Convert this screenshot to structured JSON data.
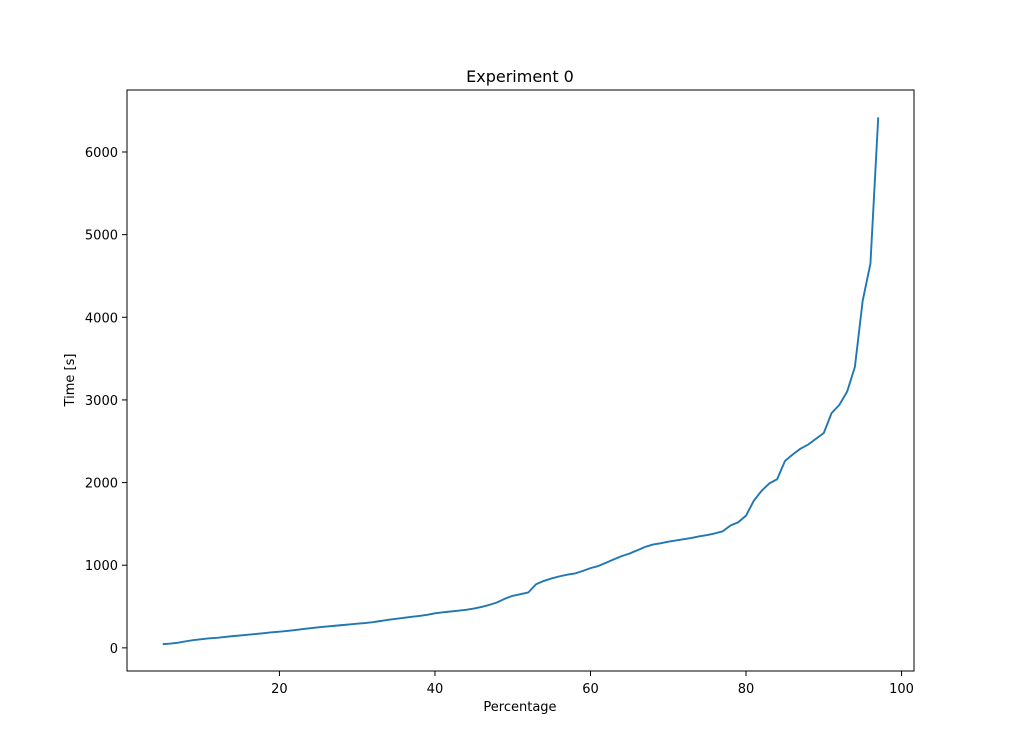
{
  "chart_data": {
    "type": "line",
    "title": "Experiment 0",
    "xlabel": "Percentage",
    "ylabel": "Time [s]",
    "xlim": [
      0.4,
      101.6
    ],
    "ylim": [
      -280,
      6750
    ],
    "xticks": [
      20,
      40,
      60,
      80,
      100
    ],
    "yticks": [
      0,
      1000,
      2000,
      3000,
      4000,
      5000,
      6000
    ],
    "grid": false,
    "line_color": "#1f77b4",
    "series": [
      {
        "x": [
          5,
          6,
          7,
          8,
          9,
          10,
          11,
          12,
          13,
          14,
          15,
          16,
          17,
          18,
          19,
          20,
          21,
          22,
          23,
          24,
          25,
          26,
          27,
          28,
          29,
          30,
          31,
          32,
          33,
          34,
          35,
          36,
          37,
          38,
          39,
          40,
          41,
          42,
          43,
          44,
          45,
          46,
          47,
          48,
          49,
          50,
          51,
          52,
          53,
          54,
          55,
          56,
          57,
          58,
          59,
          60,
          61,
          62,
          63,
          64,
          65,
          66,
          67,
          68,
          69,
          70,
          71,
          72,
          73,
          74,
          75,
          76,
          77,
          78,
          79,
          80,
          81,
          82,
          83,
          84,
          85,
          86,
          87,
          88,
          89,
          90,
          91,
          92,
          93,
          94,
          95,
          96,
          97
        ],
        "y": [
          45,
          52,
          63,
          80,
          95,
          105,
          115,
          122,
          132,
          142,
          150,
          160,
          168,
          178,
          188,
          196,
          205,
          216,
          228,
          238,
          248,
          258,
          266,
          275,
          283,
          292,
          300,
          310,
          325,
          340,
          352,
          363,
          375,
          387,
          400,
          418,
          430,
          440,
          450,
          460,
          475,
          495,
          520,
          550,
          595,
          630,
          650,
          670,
          770,
          810,
          840,
          865,
          885,
          900,
          930,
          965,
          990,
          1030,
          1070,
          1110,
          1140,
          1180,
          1220,
          1250,
          1265,
          1285,
          1300,
          1315,
          1330,
          1350,
          1365,
          1385,
          1410,
          1480,
          1520,
          1600,
          1780,
          1900,
          1990,
          2040,
          2260,
          2340,
          2410,
          2460,
          2530,
          2600,
          2840,
          2940,
          3100,
          3400,
          4200,
          4650,
          6420
        ]
      }
    ]
  }
}
